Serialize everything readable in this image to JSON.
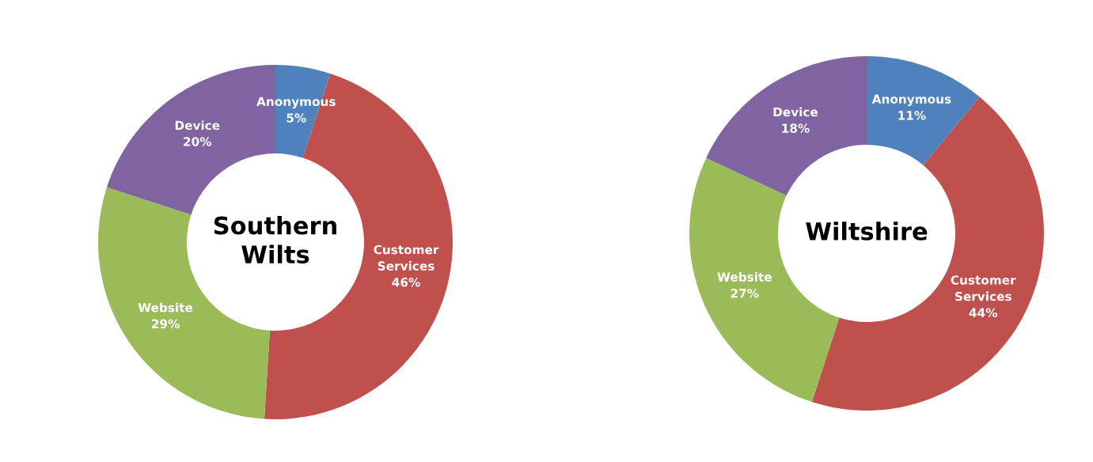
{
  "chart_data": [
    {
      "type": "donut",
      "title": "Southern Wilts",
      "categories": [
        "Anonymous",
        "Customer Services",
        "Website",
        "Device"
      ],
      "values": [
        5,
        46,
        29,
        20
      ],
      "value_labels": [
        "5%",
        "46%",
        "29%",
        "20%"
      ],
      "colors": [
        "#4f81bd",
        "#c0504d",
        "#9bbb59",
        "#8064a2"
      ],
      "legend": false
    },
    {
      "type": "donut",
      "title": "Wiltshire",
      "categories": [
        "Anonymous",
        "Customer Services",
        "Website",
        "Device"
      ],
      "values": [
        11,
        44,
        27,
        18
      ],
      "value_labels": [
        "11%",
        "44%",
        "27%",
        "18%"
      ],
      "colors": [
        "#4f81bd",
        "#c0504d",
        "#9bbb59",
        "#8064a2"
      ],
      "legend": false
    }
  ]
}
